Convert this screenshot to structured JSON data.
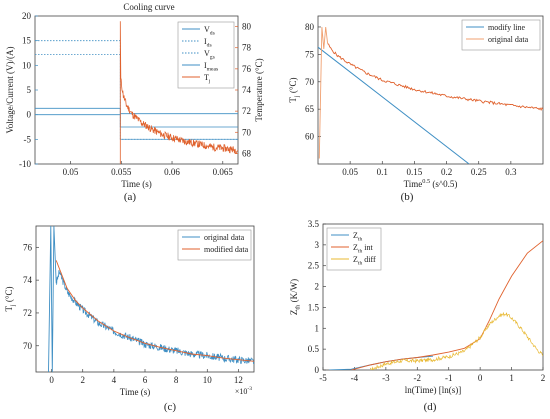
{
  "figure": {
    "captions": [
      "(a)",
      "(b)",
      "(c)",
      "(d)"
    ]
  },
  "chart_data": [
    {
      "panel": "a",
      "type": "line",
      "title": "Cooling curve",
      "xlabel": "Time (s)",
      "ylabel_left": "Voltage/Current (V)/(A)",
      "ylabel_right": "Temperature (°C)",
      "xlim": [
        0.0465,
        0.0665
      ],
      "ylim_left": [
        -10,
        20
      ],
      "ylim_right": [
        67,
        81
      ],
      "xticks": [
        "0.05",
        "0.055",
        "0.06",
        "0.065"
      ],
      "yticks_left": [
        "-10",
        "-5",
        "0",
        "5",
        "10",
        "15",
        "20"
      ],
      "yticks_right": [
        "68",
        "70",
        "72",
        "74",
        "76",
        "78",
        "80"
      ],
      "legend": [
        "V_ds",
        "I_ds",
        "V_gs",
        "I_meas",
        "T_j"
      ],
      "legend_position": "top-right",
      "colors": {
        "blue": "#3f8fc4",
        "orange": "#e0622e"
      },
      "series": [
        {
          "name": "V_ds",
          "axis": "left",
          "style": "solid",
          "x": [
            0.0465,
            0.0549,
            0.0549,
            0.0665
          ],
          "y": [
            1.3,
            1.3,
            0.2,
            0.2
          ]
        },
        {
          "name": "I_ds",
          "axis": "left",
          "style": "dotted",
          "x": [
            0.0465,
            0.0549,
            0.0549,
            0.0665
          ],
          "y": [
            12.2,
            12.2,
            -5.0,
            -5.0
          ]
        },
        {
          "name": "V_gs",
          "axis": "left",
          "style": "dotted",
          "x": [
            0.0465,
            0.0549,
            0.0549,
            0.0665
          ],
          "y": [
            15.0,
            15.0,
            -5.0,
            -5.0
          ]
        },
        {
          "name": "I_meas",
          "axis": "left",
          "style": "solid",
          "x": [
            0.0465,
            0.0549,
            0.0549,
            0.0665
          ],
          "y": [
            0.0,
            0.0,
            -2.5,
            -2.5
          ]
        },
        {
          "name": "T_j",
          "axis": "right",
          "style": "solid",
          "x": [
            0.0549,
            0.0549,
            0.05495,
            0.0552,
            0.0555,
            0.056,
            0.057,
            0.058,
            0.059,
            0.06,
            0.061,
            0.062,
            0.063,
            0.064,
            0.065,
            0.0665
          ],
          "y": [
            67,
            80.5,
            75.0,
            73.5,
            72.6,
            71.8,
            70.9,
            70.3,
            69.8,
            69.5,
            69.2,
            69.0,
            68.8,
            68.6,
            68.5,
            68.3
          ]
        }
      ]
    },
    {
      "panel": "b",
      "type": "line",
      "xlabel": "Time^0.5 (s^0.5)",
      "ylabel": "T_j (°C)",
      "xlim": [
        0,
        0.35
      ],
      "ylim": [
        55,
        82
      ],
      "xticks": [
        "0.05",
        "0.1",
        "0.15",
        "0.2",
        "0.25",
        "0.3"
      ],
      "yticks": [
        "60",
        "65",
        "70",
        "75",
        "80"
      ],
      "legend": [
        "modify line",
        "original data"
      ],
      "legend_position": "top-right",
      "series": [
        {
          "name": "modify line",
          "x": [
            0,
            0.235
          ],
          "y": [
            76.3,
            55
          ]
        },
        {
          "name": "original data",
          "x": [
            0.002,
            0.006,
            0.009,
            0.012,
            0.015,
            0.02,
            0.03,
            0.05,
            0.075,
            0.1,
            0.15,
            0.2,
            0.25,
            0.3,
            0.35
          ],
          "y": [
            56,
            80,
            76,
            80,
            77,
            76,
            74.8,
            73.2,
            71.6,
            70.3,
            68.6,
            67.4,
            66.5,
            65.7,
            65.0
          ]
        }
      ]
    },
    {
      "panel": "c",
      "type": "line",
      "xlabel": "Time (s)",
      "ylabel": "T_j (°C)",
      "x_multiplier": "×10^-3",
      "xlim": [
        -1,
        13
      ],
      "ylim": [
        68.4,
        77.3
      ],
      "xticks": [
        "0",
        "2",
        "4",
        "6",
        "8",
        "10",
        "12"
      ],
      "yticks": [
        "70",
        "72",
        "74",
        "76"
      ],
      "legend": [
        "original data",
        "modified data"
      ],
      "legend_position": "top-right",
      "series": [
        {
          "name": "original data",
          "x": [
            -0.2,
            -0.05,
            0.05,
            0.15,
            0.3,
            0.5,
            1,
            1.5,
            2,
            3,
            4,
            5,
            6,
            7,
            8,
            9,
            10,
            11,
            12,
            13
          ],
          "y": [
            68.4,
            77.3,
            68.4,
            77.3,
            73.8,
            74.5,
            73.3,
            72.7,
            72.2,
            71.4,
            70.9,
            70.5,
            70.1,
            69.9,
            69.7,
            69.5,
            69.4,
            69.25,
            69.15,
            69.05
          ]
        },
        {
          "name": "modified data",
          "x": [
            0.3,
            0.5,
            1,
            1.5,
            2,
            3,
            4,
            5,
            6,
            7,
            8,
            9,
            10,
            11,
            12,
            13
          ],
          "y": [
            75.2,
            74.7,
            73.5,
            72.8,
            72.3,
            71.5,
            70.9,
            70.5,
            70.15,
            69.9,
            69.7,
            69.5,
            69.4,
            69.25,
            69.15,
            69.05
          ]
        }
      ]
    },
    {
      "panel": "d",
      "type": "line",
      "xlabel": "ln(Time) [ln(s)]",
      "ylabel": "Z_th (K/W)",
      "xlim": [
        -5,
        2
      ],
      "ylim": [
        0,
        3.5
      ],
      "xticks": [
        "-5",
        "-4",
        "-3",
        "-2",
        "-1",
        "0",
        "1",
        "2"
      ],
      "yticks": [
        "0",
        "0.5",
        "1",
        "1.5",
        "2",
        "2.5",
        "3",
        "3.5"
      ],
      "legend": [
        "Z_th",
        "Z_th int",
        "Z_th diff"
      ],
      "legend_position": "top-left",
      "series": [
        {
          "name": "Z_th",
          "x": [
            -4.8,
            -4.1,
            -3.5,
            -3.0,
            -2.5,
            -2.0,
            -1.5
          ],
          "y": [
            0.0,
            0.02,
            0.12,
            0.2,
            0.26,
            0.3,
            0.33
          ]
        },
        {
          "name": "Z_th int",
          "x": [
            -4.1,
            -3.5,
            -3.0,
            -2.5,
            -2.0,
            -1.5,
            -1.0,
            -0.5,
            0.0,
            0.3,
            0.6,
            1.0,
            1.5,
            2.0
          ],
          "y": [
            0.0,
            0.12,
            0.2,
            0.26,
            0.3,
            0.36,
            0.43,
            0.52,
            0.75,
            1.2,
            1.7,
            2.25,
            2.8,
            3.1
          ]
        },
        {
          "name": "Z_th diff",
          "x": [
            -3.5,
            -3.0,
            -2.5,
            -2.0,
            -1.5,
            -1.0,
            -0.5,
            0.0,
            0.3,
            0.6,
            0.8,
            1.0,
            1.3,
            1.6,
            1.8,
            2.0
          ],
          "y": [
            0.0,
            0.15,
            0.22,
            0.22,
            0.25,
            0.32,
            0.45,
            0.78,
            1.1,
            1.3,
            1.35,
            1.25,
            1.0,
            0.7,
            0.5,
            0.35
          ]
        }
      ]
    }
  ]
}
